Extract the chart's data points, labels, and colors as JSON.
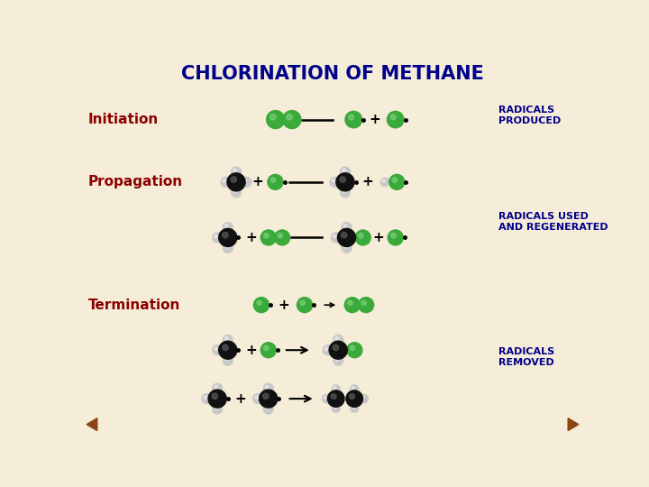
{
  "title": "CHLORINATION OF METHANE",
  "title_color": "#00008B",
  "title_fontsize": 15,
  "bg_color": "#f5edd8",
  "label_initiation": "Initiation",
  "label_propagation": "Propagation",
  "label_termination": "Termination",
  "label_color": "#8B0000",
  "label_fontsize": 11,
  "radicals_produced": "RADICALS\nPRODUCED",
  "radicals_used": "RADICALS USED\nAND REGENERATED",
  "radicals_removed": "RADICALS\nREMOVED",
  "note_color": "#00008B",
  "note_fontsize": 8,
  "green_dark": "#2d8a2d",
  "green_mid": "#3aaa3a",
  "green_high": "#77cc77",
  "black_color": "#111111",
  "gray_color": "#c8c8c8",
  "gray_high": "#e8e8e8",
  "nav_color": "#8B4513"
}
